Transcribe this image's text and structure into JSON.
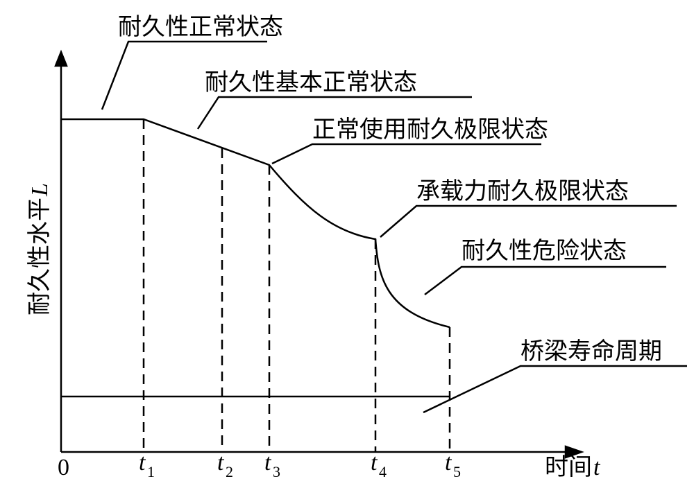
{
  "axes": {
    "y_label": {
      "text": "耐久性水平",
      "symbol": "L"
    },
    "x_label": {
      "text": "时间",
      "symbol": "t"
    },
    "origin": "0"
  },
  "ticks": [
    {
      "main": "t",
      "sub": "1"
    },
    {
      "main": "t",
      "sub": "2"
    },
    {
      "main": "t",
      "sub": "3"
    },
    {
      "main": "t",
      "sub": "4"
    },
    {
      "main": "t",
      "sub": "5"
    }
  ],
  "states": [
    "耐久性正常状态",
    "耐久性基本正常状态",
    "正常使用耐久极限状态",
    "承载力耐久极限状态",
    "耐久性危险状态",
    "桥梁寿命周期"
  ]
}
